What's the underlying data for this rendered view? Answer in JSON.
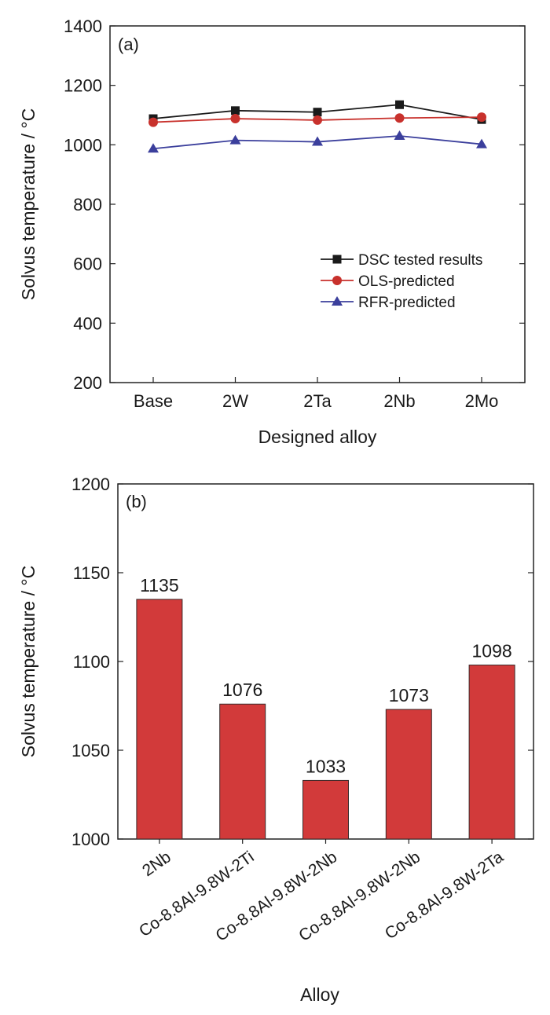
{
  "chart_data": [
    {
      "type": "line",
      "panel": "(a)",
      "xlabel": "Designed alloy",
      "ylabel": "Solvus temperature / °C",
      "categories": [
        "Base",
        "2W",
        "2Ta",
        "2Nb",
        "2Mo"
      ],
      "ylim": [
        200,
        1400
      ],
      "yticks": [
        200,
        400,
        600,
        800,
        1000,
        1200,
        1400
      ],
      "legend_position": "lower-right",
      "series": [
        {
          "name": "DSC tested results",
          "color": "#1a1a1a",
          "marker": "square",
          "values": [
            1088,
            1115,
            1110,
            1135,
            1085
          ]
        },
        {
          "name": "OLS-predicted",
          "color": "#c8312c",
          "marker": "circle",
          "values": [
            1076,
            1088,
            1083,
            1090,
            1093
          ]
        },
        {
          "name": "RFR-predicted",
          "color": "#3b3f9c",
          "marker": "triangle",
          "values": [
            987,
            1015,
            1010,
            1030,
            1002
          ]
        }
      ]
    },
    {
      "type": "bar",
      "panel": "(b)",
      "xlabel": "Alloy",
      "ylabel": "Solvus temperature / °C",
      "categories": [
        "2Nb",
        "Co-8.8Al-9.8W-2Ti",
        "Co-8.8Al-9.8W-2Nb",
        "Co-8.8Al-9.8W-2Nb",
        "Co-8.8Al-9.8W-2Ta"
      ],
      "values": [
        1135,
        1076,
        1033,
        1073,
        1098
      ],
      "value_labels": [
        "1135",
        "1076",
        "1033",
        "1073",
        "1098"
      ],
      "bar_color": "#d23a3a",
      "ylim": [
        1000,
        1200
      ],
      "yticks": [
        1000,
        1050,
        1100,
        1150,
        1200
      ]
    }
  ]
}
